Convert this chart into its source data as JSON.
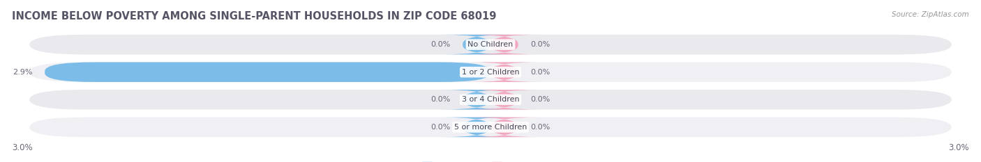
{
  "title": "INCOME BELOW POVERTY AMONG SINGLE-PARENT HOUSEHOLDS IN ZIP CODE 68019",
  "source": "Source: ZipAtlas.com",
  "categories": [
    "No Children",
    "1 or 2 Children",
    "3 or 4 Children",
    "5 or more Children"
  ],
  "single_father_values": [
    0.0,
    2.9,
    0.0,
    0.0
  ],
  "single_mother_values": [
    0.0,
    0.0,
    0.0,
    0.0
  ],
  "max_value": 3.0,
  "father_color": "#7BBCE8",
  "mother_color": "#F2A8C0",
  "bar_bg_color": "#E9E9EE",
  "bar_bg_color2": "#F0F0F4",
  "title_color": "#555566",
  "label_color": "#666677",
  "source_color": "#999999",
  "min_stub": 0.18,
  "title_fontsize": 10.5,
  "source_fontsize": 7.5,
  "label_fontsize": 8,
  "category_fontsize": 8,
  "axis_label_fontsize": 8.5,
  "left_axis_label": "3.0%",
  "right_axis_label": "3.0%"
}
